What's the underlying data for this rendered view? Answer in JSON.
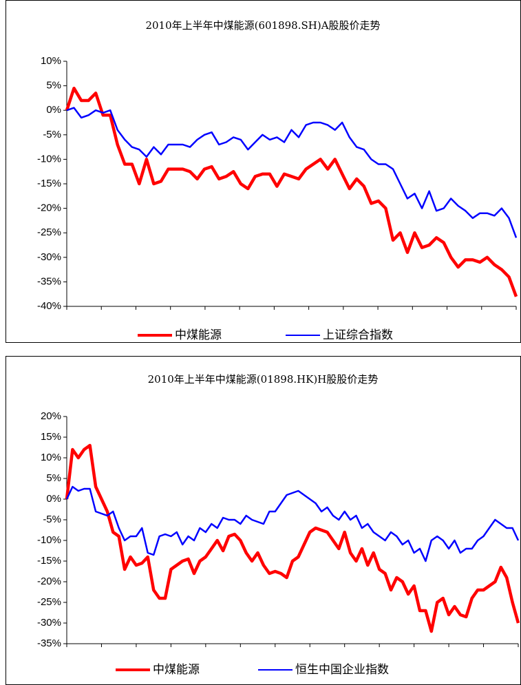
{
  "chart_data": [
    {
      "type": "line",
      "title": "2010年上半年中煤能源(601898.SH)A股股价走势",
      "ylim": [
        -40,
        10
      ],
      "yticks": [
        {
          "value": 10,
          "label": "10%"
        },
        {
          "value": 5,
          "label": "5%"
        },
        {
          "value": 0,
          "label": "0%"
        },
        {
          "value": -5,
          "label": "-5%"
        },
        {
          "value": -10,
          "label": "-10%"
        },
        {
          "value": -15,
          "label": "-15%"
        },
        {
          "value": -20,
          "label": "-20%"
        },
        {
          "value": -25,
          "label": "-25%"
        },
        {
          "value": -30,
          "label": "-30%"
        },
        {
          "value": -35,
          "label": "-35%"
        },
        {
          "value": -40,
          "label": "-40%"
        }
      ],
      "legend": "bottom",
      "series": [
        {
          "name": "中煤能源",
          "color": "#ff0000",
          "values": [
            0,
            4.5,
            2,
            2,
            3.5,
            -1,
            -1,
            -7,
            -11,
            -11,
            -15,
            -10,
            -15,
            -14.5,
            -12,
            -12,
            -12,
            -12.5,
            -14,
            -12,
            -11.5,
            -14,
            -13.5,
            -12.5,
            -15,
            -16,
            -13.5,
            -13,
            -13,
            -15.5,
            -13,
            -13.5,
            -14,
            -12,
            -11,
            -10,
            -12,
            -10,
            -13,
            -16,
            -14,
            -15.5,
            -19,
            -18.5,
            -20,
            -26.5,
            -25,
            -29,
            -25,
            -28,
            -27.5,
            -26,
            -27,
            -30,
            -32,
            -30.5,
            -30.5,
            -31,
            -30,
            -31.5,
            -32.5,
            -34,
            -38
          ]
        },
        {
          "name": "上证综合指数",
          "color": "#0000ff",
          "values": [
            0,
            0.5,
            -1.5,
            -1,
            0,
            -0.5,
            0,
            -4,
            -6,
            -7.5,
            -8,
            -9.5,
            -7.5,
            -9,
            -7,
            -7,
            -7,
            -7.5,
            -6,
            -5,
            -4.5,
            -7,
            -6.5,
            -5.5,
            -6,
            -8,
            -6.5,
            -5,
            -6,
            -5.5,
            -6.5,
            -4,
            -5.5,
            -3,
            -2.5,
            -2.5,
            -3,
            -4,
            -2.5,
            -5.5,
            -7.5,
            -8,
            -10,
            -11,
            -11,
            -12,
            -15,
            -18,
            -17,
            -20,
            -16.5,
            -20.5,
            -20,
            -18,
            -19.5,
            -20.5,
            -22,
            -21,
            -21,
            -21.5,
            -20,
            -22,
            -26
          ]
        }
      ]
    },
    {
      "type": "line",
      "title": "2010年上半年中煤能源(01898.HK)H股股价走势",
      "ylim": [
        -35,
        20
      ],
      "yticks": [
        {
          "value": 20,
          "label": "20%"
        },
        {
          "value": 15,
          "label": "15%"
        },
        {
          "value": 10,
          "label": "10%"
        },
        {
          "value": 5,
          "label": "5%"
        },
        {
          "value": 0,
          "label": "0%"
        },
        {
          "value": -5,
          "label": "-5%"
        },
        {
          "value": -10,
          "label": "-10%"
        },
        {
          "value": -15,
          "label": "-15%"
        },
        {
          "value": -20,
          "label": "-20%"
        },
        {
          "value": -25,
          "label": "-25%"
        },
        {
          "value": -30,
          "label": "-30%"
        },
        {
          "value": -35,
          "label": "-35%"
        }
      ],
      "legend": "bottom",
      "series": [
        {
          "name": "中煤能源",
          "color": "#ff0000",
          "values": [
            0,
            12,
            10,
            12,
            13,
            3,
            0,
            -3,
            -8,
            -9,
            -17,
            -14,
            -16,
            -15.5,
            -14,
            -22,
            -24,
            -24,
            -17,
            -16,
            -15,
            -14.5,
            -18,
            -15,
            -14,
            -12,
            -10,
            -12.5,
            -9,
            -8.5,
            -10,
            -13,
            -15,
            -13,
            -16,
            -18,
            -17.5,
            -18,
            -19,
            -15,
            -14,
            -11,
            -8,
            -7,
            -7.5,
            -8,
            -10,
            -12,
            -8,
            -13,
            -15,
            -12,
            -16,
            -13,
            -17,
            -18,
            -22,
            -19,
            -20,
            -23,
            -21,
            -27,
            -27,
            -32,
            -25,
            -24,
            -28,
            -26,
            -28,
            -28.5,
            -24,
            -22,
            -22,
            -21,
            -20,
            -16.5,
            -19,
            -25,
            -30
          ]
        },
        {
          "name": "恒生中国企业指数",
          "color": "#0000ff",
          "values": [
            0,
            3,
            2,
            2.5,
            2.5,
            -3,
            -3.5,
            -4,
            -3,
            -7,
            -10,
            -9,
            -9,
            -7,
            -13,
            -13.5,
            -9,
            -8.5,
            -9,
            -8,
            -11,
            -9,
            -10,
            -7,
            -8,
            -6,
            -7,
            -4.5,
            -5,
            -5,
            -6,
            -4,
            -5,
            -5.5,
            -6,
            -3,
            -3,
            -1,
            1,
            1.5,
            2,
            1,
            0,
            -1,
            -3,
            -2,
            -4,
            -5,
            -3,
            -5,
            -4,
            -7,
            -6,
            -8,
            -9,
            -10,
            -8,
            -9,
            -11,
            -10,
            -13,
            -12,
            -15,
            -10,
            -9,
            -10,
            -12,
            -10,
            -13,
            -12,
            -12,
            -10,
            -9,
            -7,
            -5,
            -6,
            -7,
            -7,
            -10
          ]
        }
      ]
    }
  ]
}
